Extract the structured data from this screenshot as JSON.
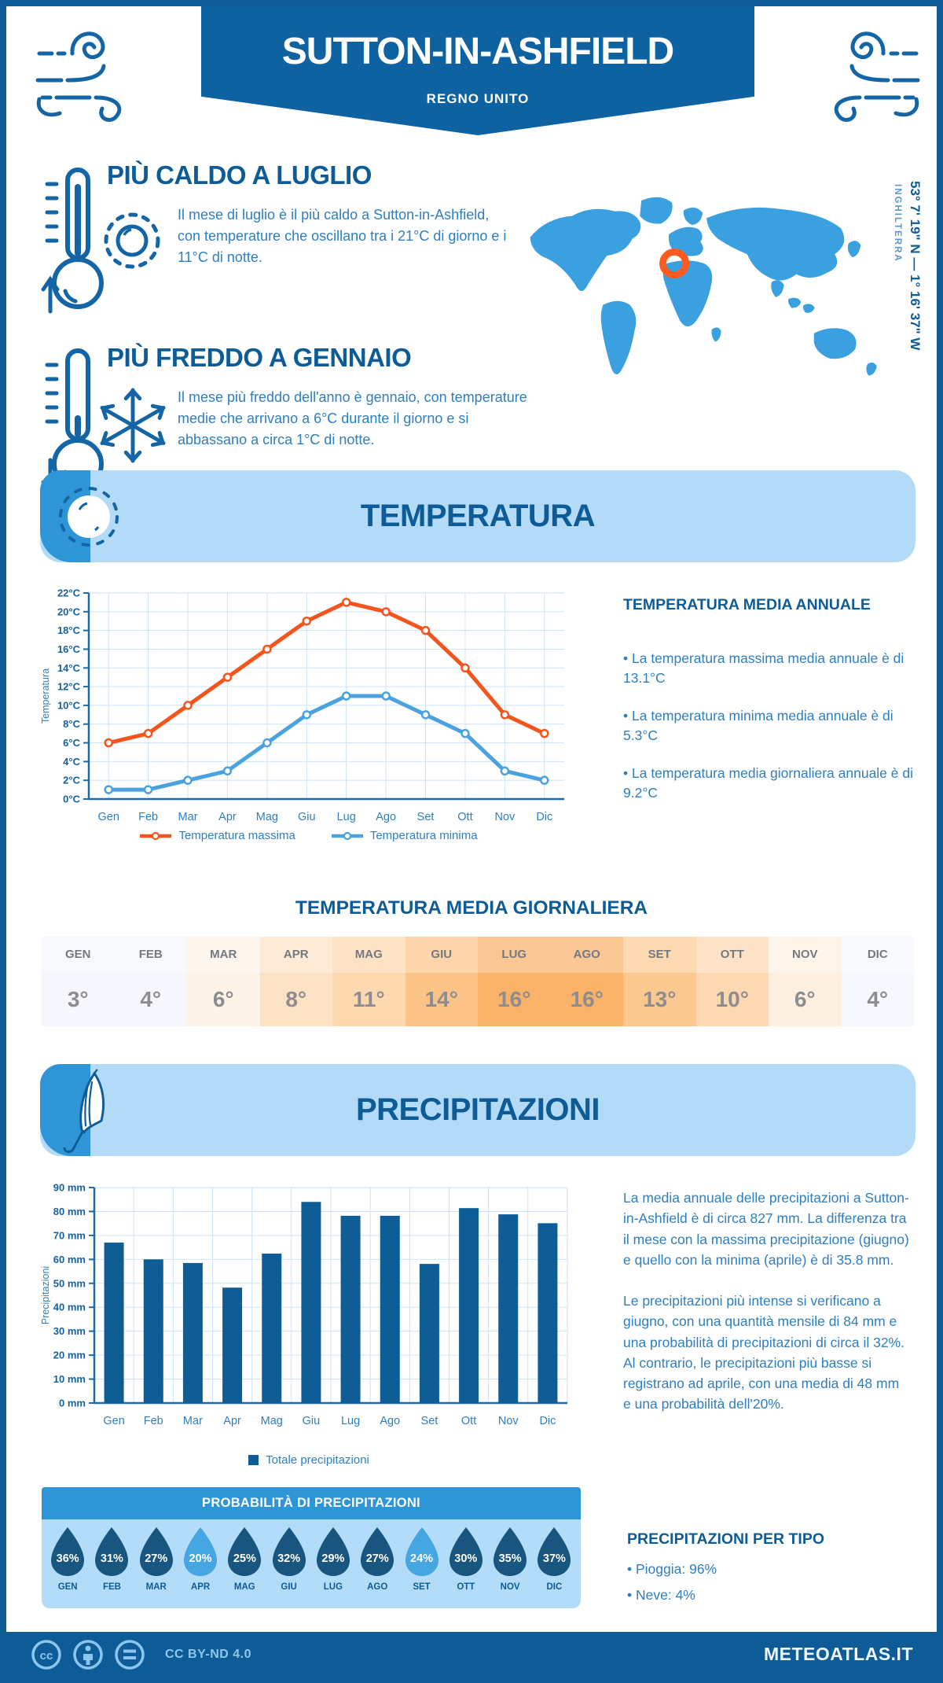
{
  "header": {
    "title": "SUTTON-IN-ASHFIELD",
    "subtitle": "REGNO UNITO"
  },
  "location": {
    "coordinates": "53° 7' 19\" N — 1° 16' 37\" W",
    "region": "INGHILTERRA"
  },
  "highlights": {
    "hot": {
      "title": "PIÙ CALDO A LUGLIO",
      "text": "Il mese di luglio è il più caldo a Sutton-in-Ashfield, con temperature che oscillano tra i 21°C di giorno e i 11°C di notte."
    },
    "cold": {
      "title": "PIÙ FREDDO A GENNAIO",
      "text": "Il mese più freddo dell'anno è gennaio, con temperature medie che arrivano a 6°C durante il giorno e si abbassano a circa 1°C di notte."
    }
  },
  "temperature": {
    "banner": "TEMPERATURA",
    "annual": {
      "title": "TEMPERATURA MEDIA ANNUALE",
      "bullets": [
        "La temperatura massima media annuale è di 13.1°C",
        "La temperatura minima media annuale è di 5.3°C",
        "La temperatura media giornaliera annuale è di 9.2°C"
      ]
    },
    "daily": {
      "title": "TEMPERATURA MEDIA GIORNALIERA",
      "months": [
        "GEN",
        "FEB",
        "MAR",
        "APR",
        "MAG",
        "GIU",
        "LUG",
        "AGO",
        "SET",
        "OTT",
        "NOV",
        "DIC"
      ],
      "values": [
        "3°",
        "4°",
        "6°",
        "8°",
        "11°",
        "14°",
        "16°",
        "16°",
        "13°",
        "10°",
        "6°",
        "4°"
      ],
      "cell_colors": [
        "#f5f7fc",
        "#f5f7fc",
        "#fdf3e9",
        "#fce3c6",
        "#fdd7ae",
        "#fbc386",
        "#fab168",
        "#fab168",
        "#fbc98f",
        "#fdd8b1",
        "#fdf0e1",
        "#f5f8fd"
      ]
    }
  },
  "precipitation": {
    "banner": "PRECIPITAZIONI",
    "paragraphs": [
      "La media annuale delle precipitazioni a Sutton-in-Ashfield è di circa 827 mm. La differenza tra il mese con la massima precipitazione (giugno) e quello con la minima (aprile) è di 35.8 mm.",
      "Le precipitazioni più intense si verificano a giugno, con una quantità mensile di 84 mm e una probabilità di precipitazioni di circa il 32%. Al contrario, le precipitazioni più basse si registrano ad aprile, con una media di 48 mm e una probabilità dell'20%."
    ],
    "probability": {
      "title": "PROBABILITÀ DI PRECIPITAZIONI",
      "months": [
        "GEN",
        "FEB",
        "MAR",
        "APR",
        "MAG",
        "GIU",
        "LUG",
        "AGO",
        "SET",
        "OTT",
        "NOV",
        "DIC"
      ],
      "values": [
        "36%",
        "31%",
        "27%",
        "20%",
        "25%",
        "32%",
        "29%",
        "27%",
        "24%",
        "30%",
        "35%",
        "37%"
      ],
      "variants": [
        "dark",
        "dark",
        "dark",
        "light",
        "dark",
        "dark",
        "dark",
        "dark",
        "light",
        "dark",
        "dark",
        "dark"
      ],
      "drop_dark": "#18567f",
      "drop_light": "#45a6e1"
    },
    "types": {
      "title": "PRECIPITAZIONI PER TIPO",
      "bullets": [
        "Pioggia: 96%",
        "Neve: 4%"
      ]
    }
  },
  "footer": {
    "license": "CC BY-ND 4.0",
    "site": "METEOATLAS.IT"
  },
  "colors": {
    "dark_blue": "#0d5c97",
    "banner_blue": "#0f62a2",
    "bright_blue": "#2e96d7",
    "panel_light_blue": "#b3daf7",
    "map_blue": "#3aa0e0",
    "marker_orange": "#fb5b21",
    "text_blue": "#2e7fc0",
    "line_max": "#f4551c",
    "line_min": "#4aa3df",
    "bar_blue": "#0f5d97"
  },
  "chart_data": [
    {
      "type": "line",
      "categories": [
        "Gen",
        "Feb",
        "Mar",
        "Apr",
        "Mag",
        "Giu",
        "Lug",
        "Ago",
        "Set",
        "Ott",
        "Nov",
        "Dic"
      ],
      "series": [
        {
          "name": "Temperatura massima",
          "color": "#f4551c",
          "values": [
            6,
            7,
            10,
            13,
            16,
            19,
            21,
            20,
            18,
            14,
            9,
            7
          ]
        },
        {
          "name": "Temperatura minima",
          "color": "#4aa3df",
          "values": [
            1,
            1,
            2,
            3,
            6,
            9,
            11,
            11,
            9,
            7,
            3,
            2
          ]
        }
      ],
      "ylabel": "Temperatura",
      "xlabel": "",
      "title": "",
      "ylim": [
        0,
        22
      ],
      "ytick_step": 2,
      "ytick_suffix": "°C",
      "grid": true,
      "legend_position": "bottom"
    },
    {
      "type": "bar",
      "categories": [
        "Gen",
        "Feb",
        "Mar",
        "Apr",
        "Mag",
        "Giu",
        "Lug",
        "Ago",
        "Set",
        "Ott",
        "Nov",
        "Dic"
      ],
      "series": [
        {
          "name": "Totale precipitazioni",
          "color": "#0f5d97",
          "values": [
            67,
            60,
            58.5,
            48.2,
            62.4,
            84,
            78.2,
            78.2,
            58.1,
            81.4,
            78.8,
            75.1
          ]
        }
      ],
      "ylabel": "Precipitazioni",
      "xlabel": "",
      "title": "",
      "ylim": [
        0,
        90
      ],
      "ytick_step": 10,
      "ytick_suffix": " mm",
      "grid": true,
      "legend_position": "bottom"
    }
  ]
}
